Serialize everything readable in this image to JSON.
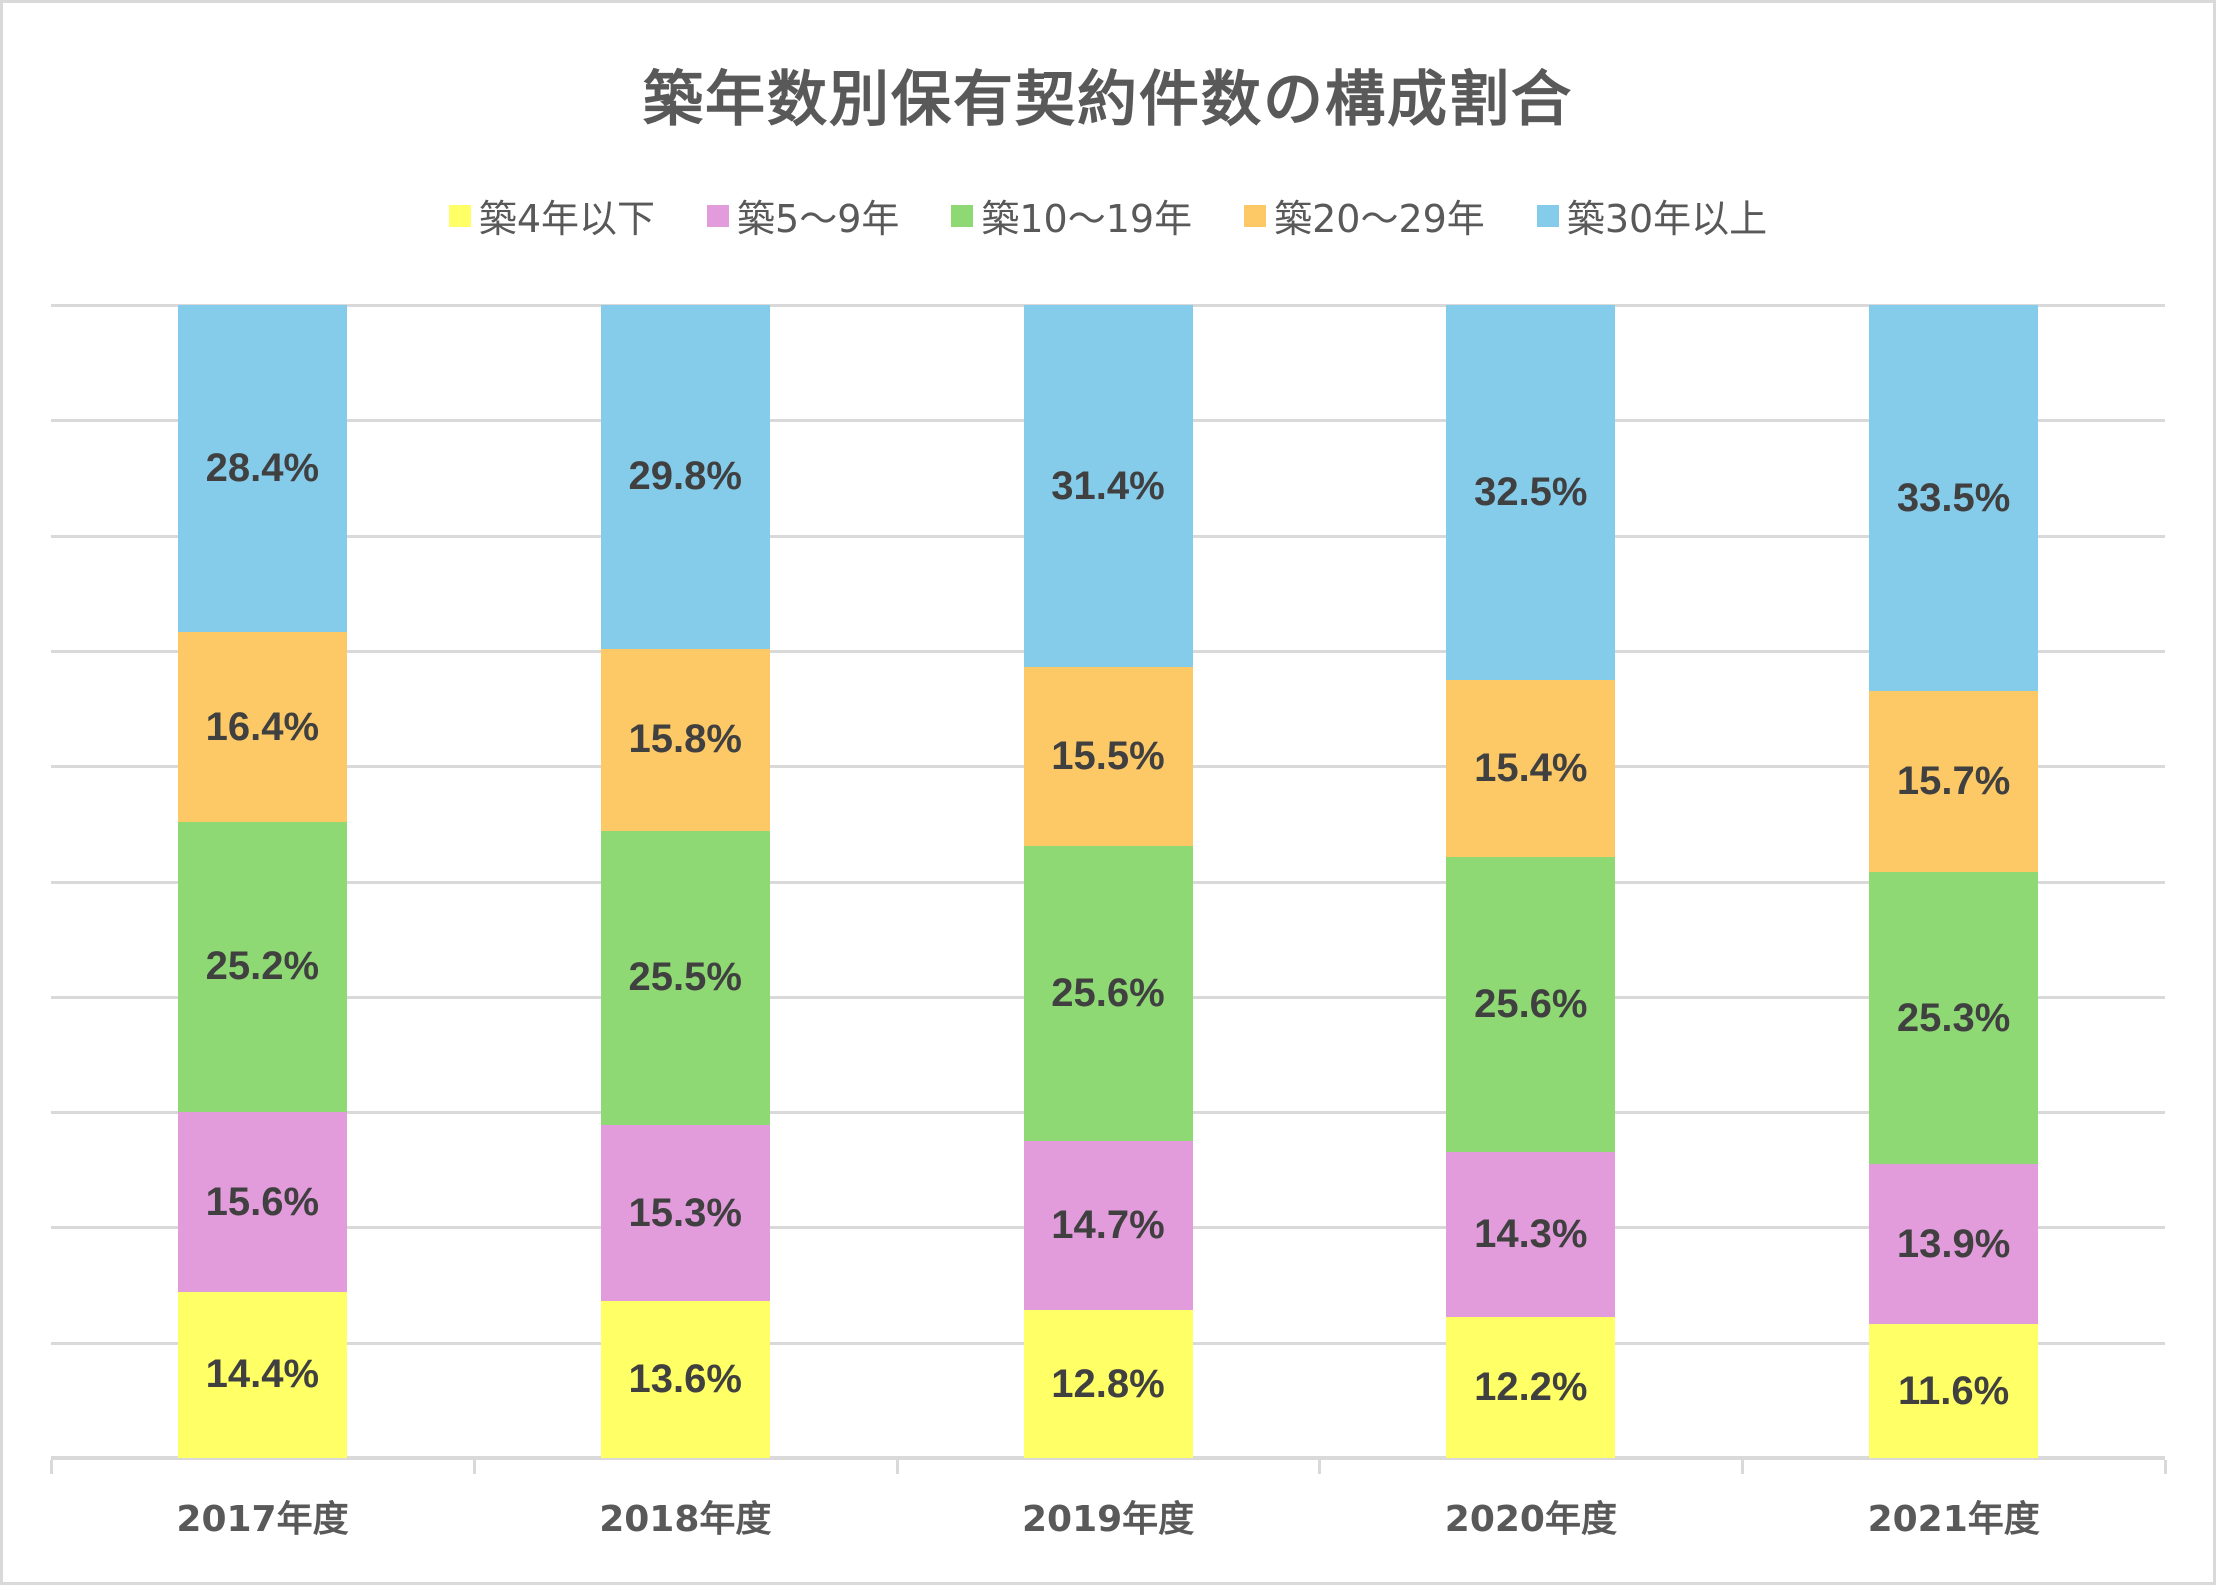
{
  "chart_data": {
    "type": "bar",
    "stacked": true,
    "percent_stacked": true,
    "title": "築年数別保有契約件数の構成割合",
    "xlabel": "",
    "ylabel": "",
    "ylim": [
      0,
      100
    ],
    "grid": true,
    "gridline_count": 10,
    "legend_position": "top",
    "categories": [
      "2017年度",
      "2018年度",
      "2019年度",
      "2020年度",
      "2021年度"
    ],
    "series": [
      {
        "name": "築4年以下",
        "color": "#ffff66",
        "values": [
          14.4,
          13.6,
          12.8,
          12.2,
          11.6
        ],
        "labels": [
          "14.4%",
          "13.6%",
          "12.8%",
          "12.2%",
          "11.6%"
        ]
      },
      {
        "name": "築5〜9年",
        "color": "#e29cdc",
        "values": [
          15.6,
          15.3,
          14.7,
          14.3,
          13.9
        ],
        "labels": [
          "15.6%",
          "15.3%",
          "14.7%",
          "14.3%",
          "13.9%"
        ]
      },
      {
        "name": "築10〜19年",
        "color": "#8fd975",
        "values": [
          25.2,
          25.5,
          25.6,
          25.6,
          25.3
        ],
        "labels": [
          "25.2%",
          "25.5%",
          "25.6%",
          "25.6%",
          "25.3%"
        ]
      },
      {
        "name": "築20〜29年",
        "color": "#fdc966",
        "values": [
          16.4,
          15.8,
          15.5,
          15.4,
          15.7
        ],
        "labels": [
          "16.4%",
          "15.8%",
          "15.5%",
          "15.4%",
          "15.7%"
        ]
      },
      {
        "name": "築30年以上",
        "color": "#85cbea",
        "values": [
          28.4,
          29.8,
          31.4,
          32.5,
          33.5
        ],
        "labels": [
          "28.4%",
          "29.8%",
          "31.4%",
          "32.5%",
          "33.5%"
        ]
      }
    ]
  },
  "colors": {
    "title": "#595959",
    "data_label": "#404040",
    "gridline": "#d9d9d9",
    "border": "#d9d9d9"
  }
}
